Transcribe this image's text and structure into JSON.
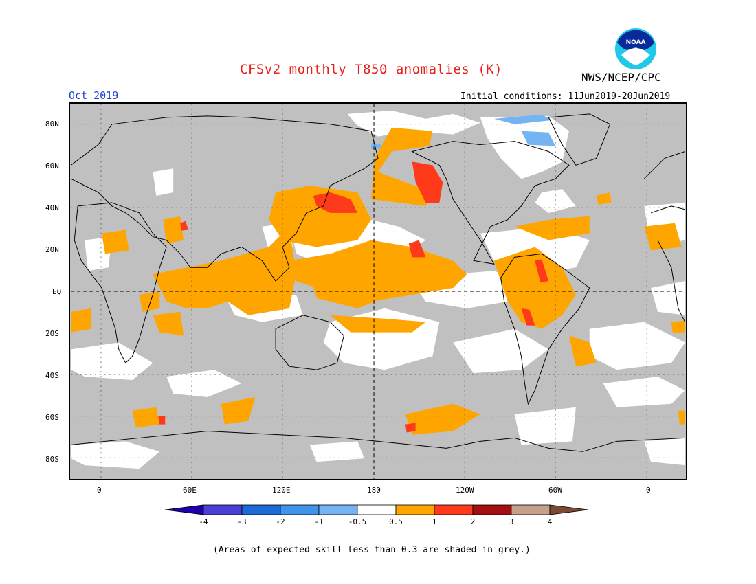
{
  "header": {
    "title": "CFSv2 monthly T850 anomalies (K)",
    "org": "NWS/NCEP/CPC",
    "month": "Oct 2019",
    "initial_conditions": "Initial conditions: 11Jun2019-20Jun2019",
    "logo_text": "NOAA"
  },
  "map": {
    "lat_labels": [
      "80N",
      "60N",
      "40N",
      "20N",
      "EQ",
      "20S",
      "40S",
      "60S",
      "80S"
    ],
    "lon_labels": [
      "0",
      "60E",
      "120E",
      "180",
      "120W",
      "60W",
      "0"
    ],
    "colors": {
      "grey_mask": "#c0c0c0",
      "white_neutral": "#ffffff",
      "light_orange": "#ffa500",
      "orange_red": "#ff3a1a",
      "light_blue": "#74b4f2",
      "coast": "#000000"
    }
  },
  "colorbar": {
    "labels": [
      "-4",
      "-3",
      "-2",
      "-1",
      "-0.5",
      "0.5",
      "1",
      "2",
      "3",
      "4"
    ],
    "colors": [
      "#1e00a8",
      "#4c3fd4",
      "#1d6ad9",
      "#3f93ea",
      "#74b4f2",
      "#ffffff",
      "#ffa500",
      "#ff3a1a",
      "#a60f0f",
      "#c7a08c",
      "#7a4a36"
    ]
  },
  "footnote": "(Areas of expected skill less than 0.3 are shaded in grey.)"
}
